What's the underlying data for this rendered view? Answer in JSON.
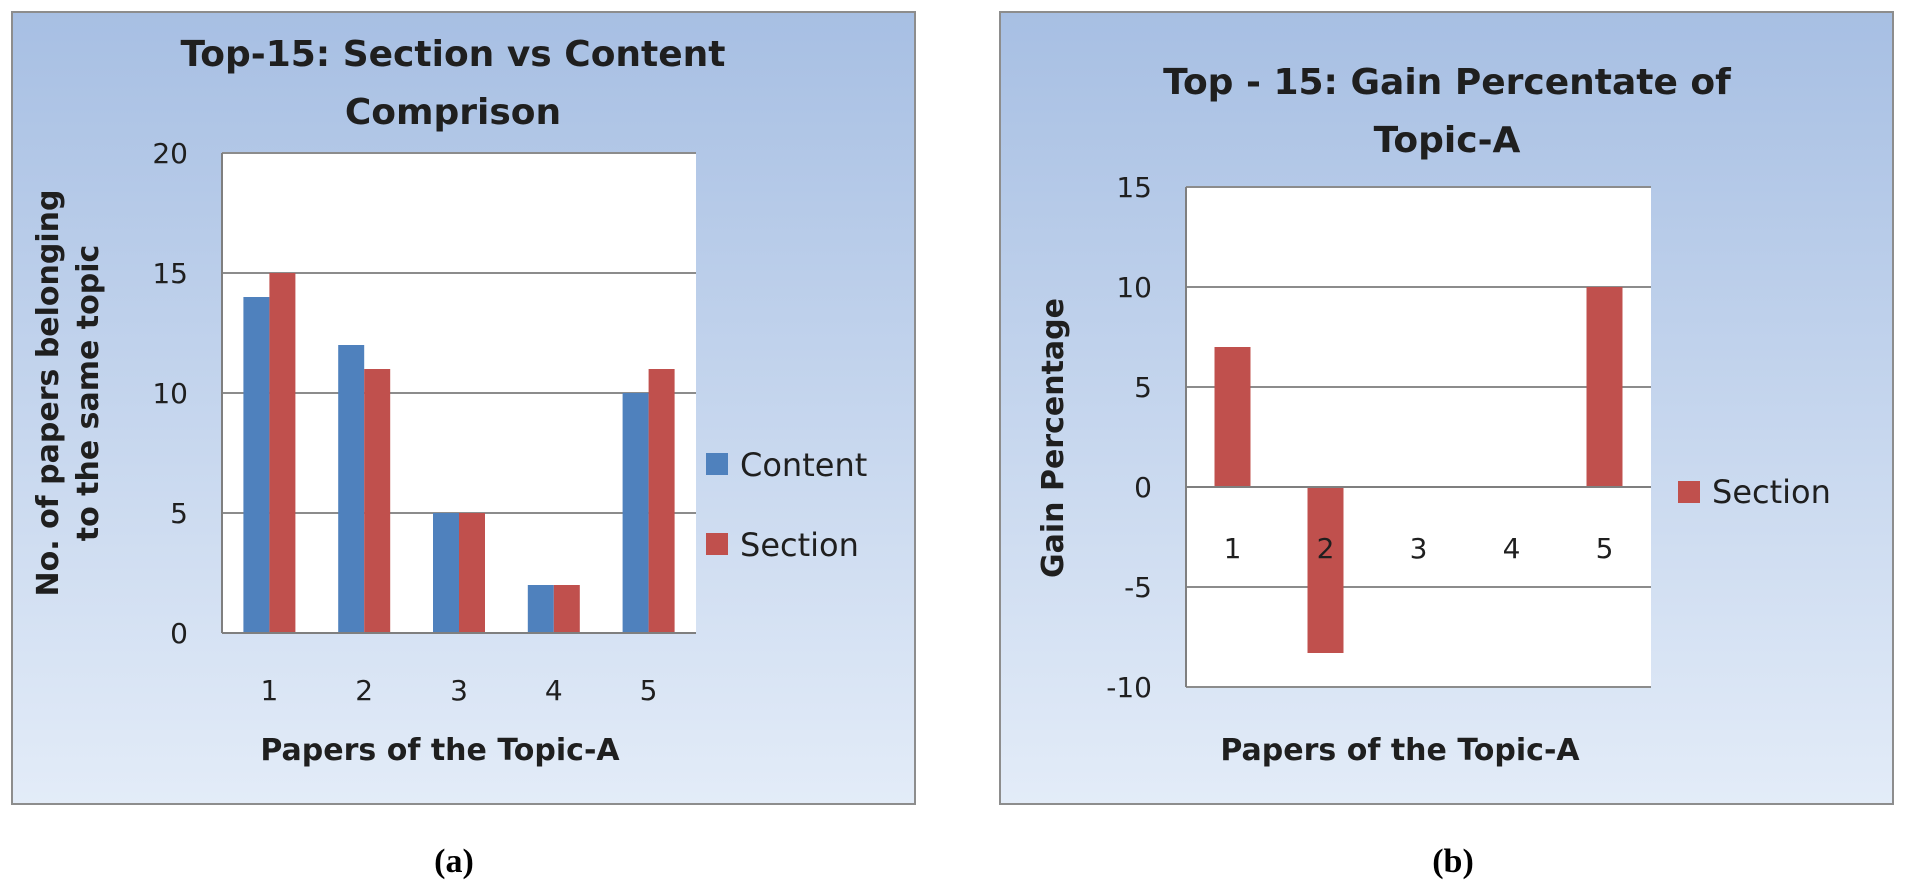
{
  "colors": {
    "content": "#4f81bd",
    "section": "#c0504d",
    "panel_top": "#a7bfe3",
    "panel_bottom": "#e3ecf8",
    "plot_bg": "#ffffff",
    "grid": "#8c8c8c"
  },
  "chart_data": [
    {
      "type": "bar",
      "title_lines": [
        "Top-15: Section vs Content",
        "Comprison"
      ],
      "xlabel": "Papers of the Topic-A",
      "ylabel_lines": [
        "No. of papers belonging",
        "to the same topic"
      ],
      "categories": [
        "1",
        "2",
        "3",
        "4",
        "5"
      ],
      "ylim": [
        0,
        20
      ],
      "yticks": [
        0,
        5,
        10,
        15,
        20
      ],
      "grid": true,
      "legend_position": "right",
      "series": [
        {
          "name": "Content",
          "values": [
            14,
            12,
            5,
            2,
            10
          ]
        },
        {
          "name": "Section",
          "values": [
            15,
            11,
            5,
            2,
            11
          ]
        }
      ],
      "caption": "(a)"
    },
    {
      "type": "bar",
      "title_lines": [
        "Top - 15: Gain Percentate of",
        "Topic-A"
      ],
      "xlabel": "Papers of the Topic-A",
      "ylabel_lines": [
        "Gain  Percentage"
      ],
      "categories": [
        "1",
        "2",
        "3",
        "4",
        "5"
      ],
      "ylim": [
        -10,
        15
      ],
      "yticks": [
        -10,
        -5,
        0,
        5,
        10,
        15
      ],
      "grid": true,
      "legend_position": "right",
      "series": [
        {
          "name": "Section",
          "values": [
            7,
            -8.3,
            0,
            0,
            10
          ]
        }
      ],
      "caption": "(b)"
    }
  ]
}
